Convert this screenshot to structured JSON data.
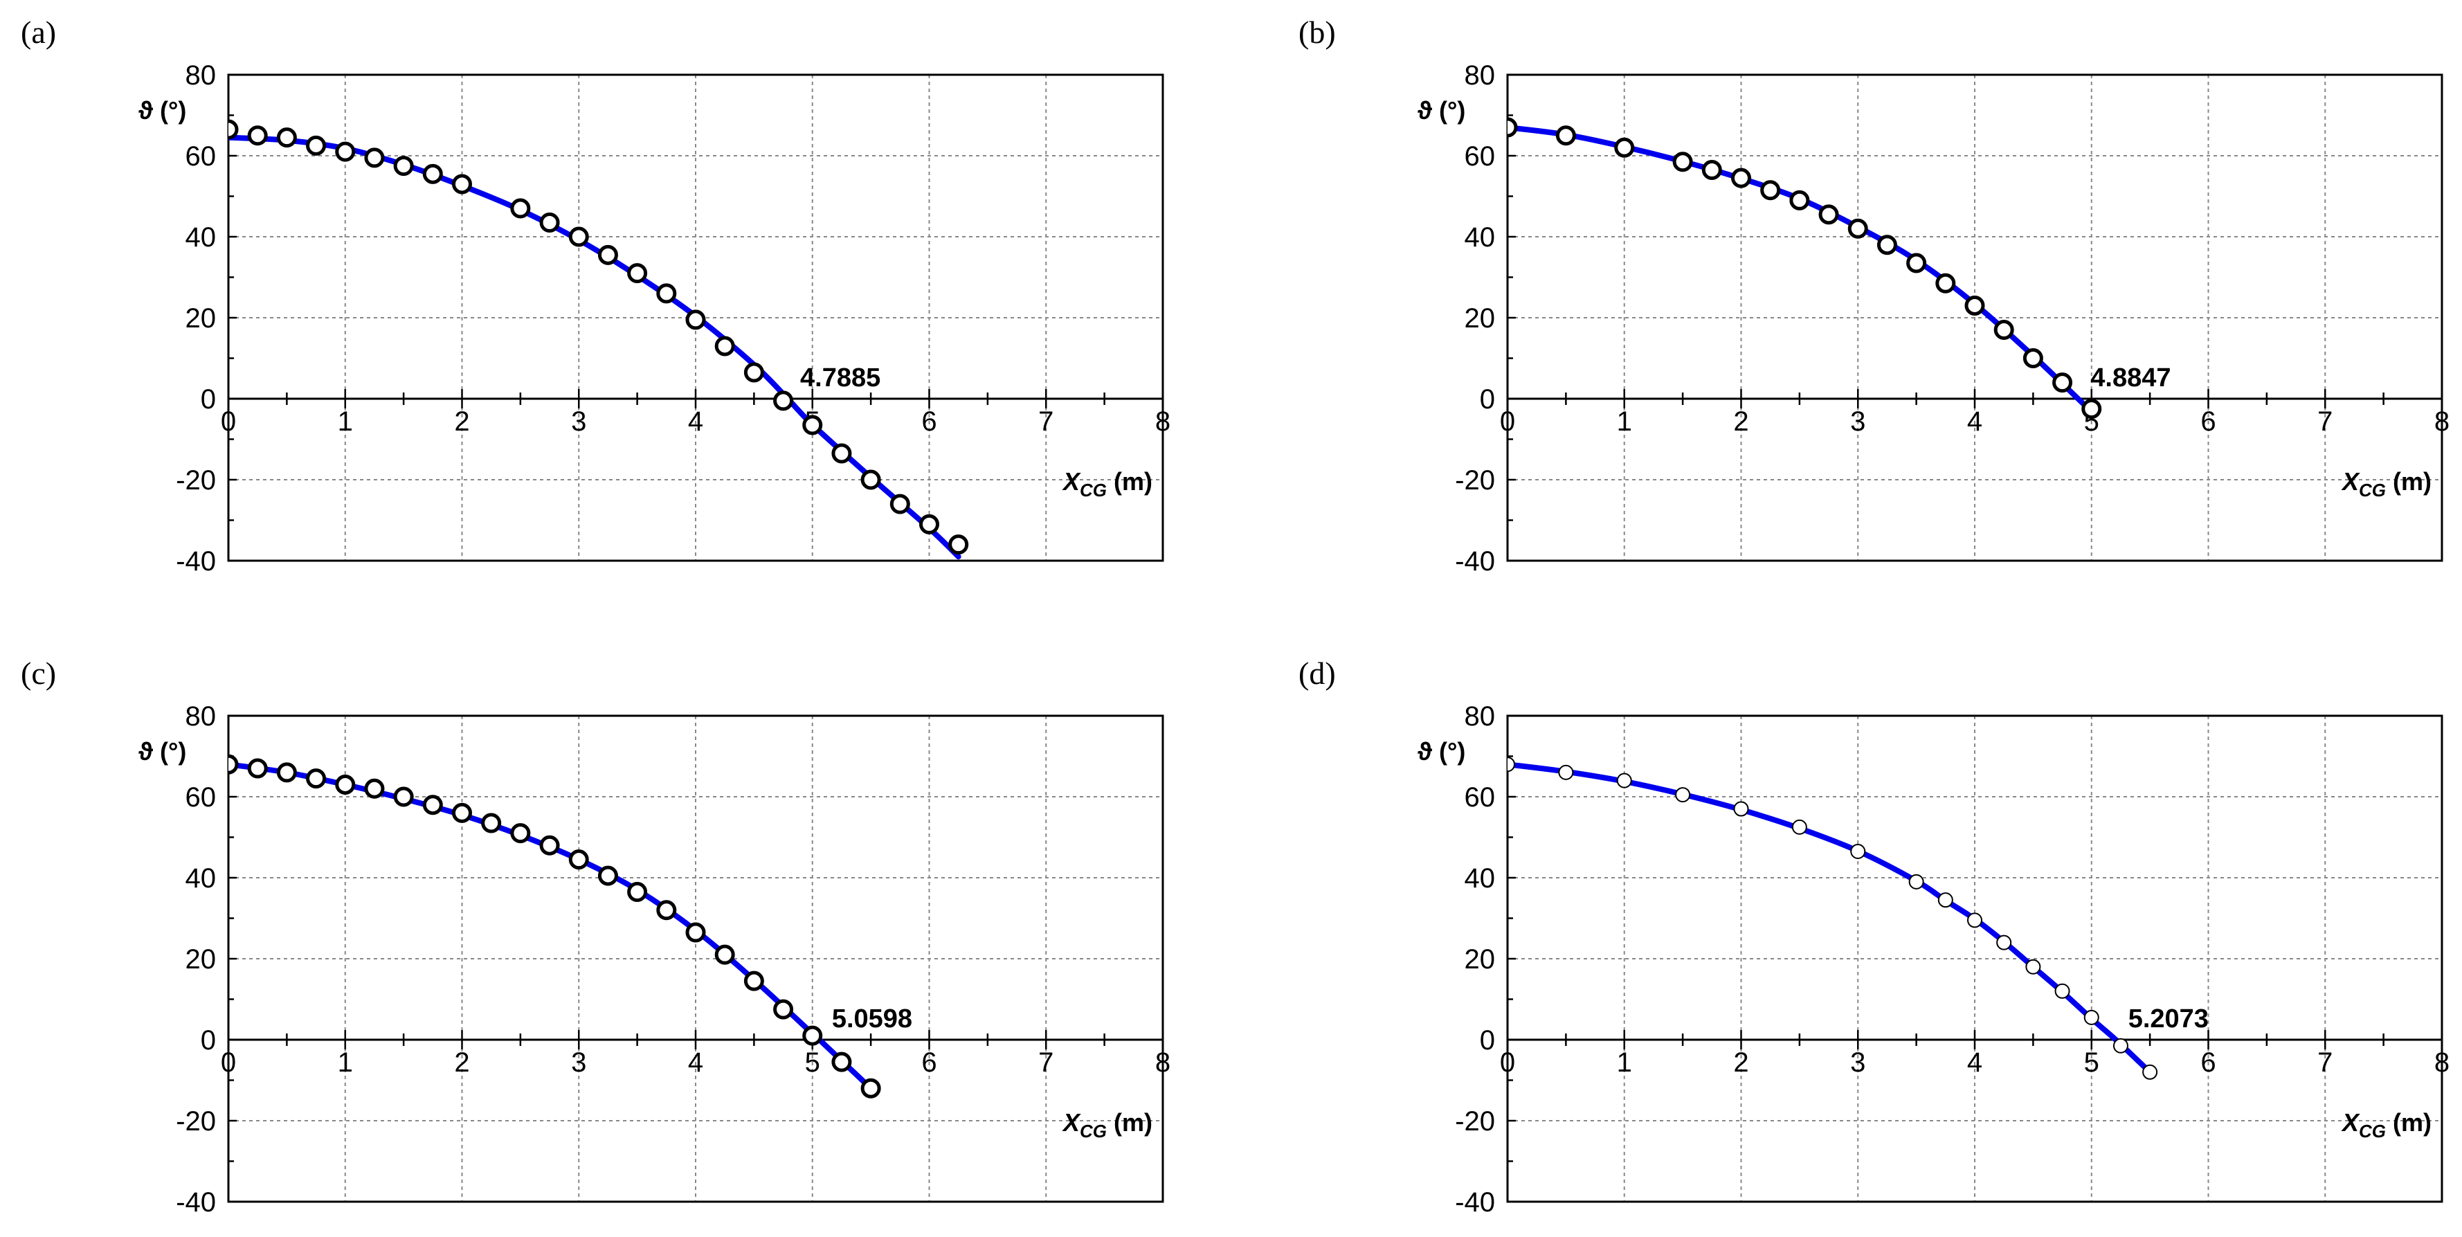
{
  "chart_data": [
    {
      "type": "scatter",
      "label": "(a)",
      "xlabel_main": "X",
      "xlabel_sub": "CG",
      "xlabel_unit": "(m)",
      "ylabel": "ϑ (°)",
      "xlim": [
        0,
        8
      ],
      "ylim": [
        -40,
        80
      ],
      "xticks": [
        0,
        1,
        2,
        3,
        4,
        5,
        6,
        7,
        8
      ],
      "yticks": [
        -40,
        -20,
        0,
        20,
        40,
        60,
        80
      ],
      "grid": true,
      "marker_fill": "#ffffff",
      "curve_color": "#0000ee",
      "annotation": {
        "text": "4.7885",
        "x": 4.7885,
        "y": 0
      },
      "curve": {
        "x": [
          0,
          0.5,
          1,
          1.5,
          2,
          2.5,
          3,
          3.5,
          4,
          4.5,
          4.7885,
          5,
          5.5,
          6,
          6.25
        ],
        "y": [
          64.5,
          63.8,
          61.8,
          57.8,
          52.6,
          46.6,
          39.2,
          30.4,
          20.4,
          8.4,
          0,
          -6.4,
          -19.4,
          -32,
          -39
        ]
      },
      "points": {
        "x": [
          0,
          0.25,
          0.5,
          0.75,
          1,
          1.25,
          1.5,
          1.75,
          2,
          2.5,
          2.75,
          3,
          3.25,
          3.5,
          3.75,
          4,
          4.25,
          4.5,
          4.75,
          5,
          5.25,
          5.5,
          5.75,
          6,
          6.25
        ],
        "y": [
          66.5,
          65,
          64.5,
          62.5,
          61,
          59.5,
          57.5,
          55.5,
          53,
          47,
          43.5,
          40,
          35.5,
          31,
          26,
          19.5,
          13,
          6.5,
          -0.5,
          -6.5,
          -13.5,
          -20,
          -26,
          -31,
          -36
        ]
      }
    },
    {
      "type": "scatter",
      "label": "(b)",
      "xlabel_main": "X",
      "xlabel_sub": "CG",
      "xlabel_unit": "(m)",
      "ylabel": "ϑ (°)",
      "xlim": [
        0,
        8
      ],
      "ylim": [
        -40,
        80
      ],
      "xticks": [
        0,
        1,
        2,
        3,
        4,
        5,
        6,
        7,
        8
      ],
      "yticks": [
        -40,
        -20,
        0,
        20,
        40,
        60,
        80
      ],
      "grid": true,
      "marker_fill": "#ffffff",
      "curve_color": "#0000ee",
      "annotation": {
        "text": "4.8847",
        "x": 4.8847,
        "y": 0
      },
      "curve": {
        "x": [
          0,
          0.5,
          1,
          1.5,
          2,
          2.5,
          3,
          3.5,
          4,
          4.5,
          4.8847,
          5
        ],
        "y": [
          67,
          65.2,
          62.2,
          58.6,
          54.4,
          49.4,
          42.4,
          34.2,
          23.4,
          10.6,
          0,
          -3.2
        ]
      },
      "points": {
        "x": [
          0,
          0.5,
          1,
          1.5,
          1.75,
          2,
          2.25,
          2.5,
          2.75,
          3,
          3.25,
          3.5,
          3.75,
          4,
          4.25,
          4.5,
          4.75,
          5
        ],
        "y": [
          67,
          65,
          62,
          58.5,
          56.5,
          54.5,
          51.5,
          49,
          45.5,
          42,
          38,
          33.5,
          28.5,
          23,
          17,
          10,
          4,
          -2.5
        ]
      }
    },
    {
      "type": "scatter",
      "label": "(c)",
      "xlabel_main": "X",
      "xlabel_sub": "CG",
      "xlabel_unit": "(m)",
      "ylabel": "ϑ (°)",
      "xlim": [
        0,
        8
      ],
      "ylim": [
        -40,
        80
      ],
      "xticks": [
        0,
        1,
        2,
        3,
        4,
        5,
        6,
        7,
        8
      ],
      "yticks": [
        -40,
        -20,
        0,
        20,
        40,
        60,
        80
      ],
      "grid": true,
      "marker_fill": "#ffffff",
      "curve_color": "#0000ee",
      "annotation": {
        "text": "5.0598",
        "x": 5.0598,
        "y": 0
      },
      "curve": {
        "x": [
          0,
          0.5,
          1,
          1.5,
          2,
          2.5,
          3,
          3.5,
          4,
          4.5,
          5,
          5.0598,
          5.5
        ],
        "y": [
          68,
          66,
          63,
          59.5,
          55.5,
          50.5,
          44.5,
          37,
          27,
          14.8,
          1.5,
          0,
          -12
        ]
      },
      "points": {
        "x": [
          0,
          0.25,
          0.5,
          0.75,
          1,
          1.25,
          1.5,
          1.75,
          2,
          2.25,
          2.5,
          2.75,
          3,
          3.25,
          3.5,
          3.75,
          4,
          4.25,
          4.5,
          4.75,
          5,
          5.25,
          5.5
        ],
        "y": [
          68,
          67,
          66,
          64.5,
          63,
          62,
          60,
          58,
          56,
          53.5,
          51,
          48,
          44.5,
          40.5,
          36.5,
          32,
          26.5,
          21,
          14.5,
          7.5,
          1,
          -5.5,
          -12
        ]
      }
    },
    {
      "type": "scatter",
      "label": "(d)",
      "xlabel_main": "X",
      "xlabel_sub": "CG",
      "xlabel_unit": "(m)",
      "ylabel": "ϑ (°)",
      "xlim": [
        0,
        8
      ],
      "ylim": [
        -40,
        80
      ],
      "xticks": [
        0,
        1,
        2,
        3,
        4,
        5,
        6,
        7,
        8
      ],
      "yticks": [
        -40,
        -20,
        0,
        20,
        40,
        60,
        80
      ],
      "grid": true,
      "marker_fill": "#ffffff",
      "curve_color": "#0000ee",
      "annotation": {
        "text": "5.2073",
        "x": 5.2073,
        "y": 0
      },
      "curve": {
        "x": [
          0,
          0.5,
          1,
          1.5,
          2,
          2.5,
          3,
          3.5,
          3.75,
          4,
          4.25,
          4.5,
          4.75,
          5,
          5.2073,
          5.5
        ],
        "y": [
          68,
          66.2,
          63.8,
          60.6,
          56.8,
          52.2,
          46.6,
          39.2,
          34.4,
          29.8,
          24.2,
          18,
          11.8,
          5.2,
          0,
          -8
        ]
      },
      "points": {
        "x": [
          0,
          0.5,
          1,
          1.5,
          2,
          2.5,
          3,
          3.5,
          3.75,
          4,
          4.25,
          4.5,
          4.75,
          5,
          5.25,
          5.5
        ],
        "y": [
          68,
          66,
          64,
          60.5,
          57,
          52.5,
          46.5,
          39,
          34.5,
          29.5,
          24,
          18,
          12,
          5.5,
          -1.5,
          -8
        ]
      }
    }
  ]
}
